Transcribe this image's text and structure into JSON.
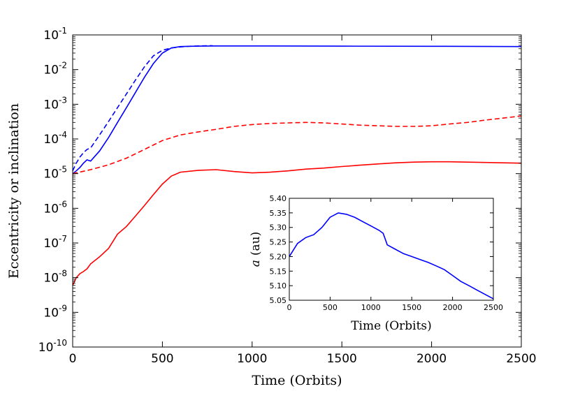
{
  "chart_data": [
    {
      "type": "line",
      "xlabel": "Time (Orbits)",
      "ylabel": "Eccentricity or inclination",
      "xlim": [
        0,
        2500
      ],
      "ylim_exponents": [
        -10,
        -1
      ],
      "yscale": "log",
      "x_ticks": [
        "0",
        "500",
        "1000",
        "1500",
        "2000",
        "2500"
      ],
      "y_ticks": [
        {
          "base": "10",
          "exp": "-10"
        },
        {
          "base": "10",
          "exp": "-9"
        },
        {
          "base": "10",
          "exp": "-8"
        },
        {
          "base": "10",
          "exp": "-7"
        },
        {
          "base": "10",
          "exp": "-6"
        },
        {
          "base": "10",
          "exp": "-5"
        },
        {
          "base": "10",
          "exp": "-4"
        },
        {
          "base": "10",
          "exp": "-3"
        },
        {
          "base": "10",
          "exp": "-2"
        },
        {
          "base": "10",
          "exp": "-1"
        }
      ],
      "series": [
        {
          "color": "#0000ff",
          "style": "solid",
          "x": [
            0,
            20,
            40,
            60,
            80,
            100,
            150,
            200,
            250,
            300,
            350,
            400,
            450,
            500,
            550,
            600,
            650,
            700,
            800,
            1000,
            1500,
            2000,
            2500
          ],
          "y": [
            1e-05,
            1.2e-05,
            1.5e-05,
            2e-05,
            2.5e-05,
            2.3e-05,
            4.5e-05,
            0.00011,
            0.0003,
            0.0008,
            0.0022,
            0.006,
            0.015,
            0.03,
            0.042,
            0.046,
            0.047,
            0.0475,
            0.048,
            0.048,
            0.0475,
            0.047,
            0.046
          ]
        },
        {
          "color": "#0000ff",
          "style": "dashed",
          "x": [
            0,
            20,
            40,
            60,
            80,
            100,
            150,
            200,
            250,
            300,
            350,
            400,
            450,
            500,
            550,
            600,
            650,
            700,
            780
          ],
          "y": [
            1.2e-05,
            2e-05,
            3e-05,
            4e-05,
            5e-05,
            5.5e-05,
            0.00013,
            0.00032,
            0.0008,
            0.002,
            0.005,
            0.012,
            0.025,
            0.036,
            0.042,
            0.045,
            0.047,
            0.048,
            0.049
          ]
        },
        {
          "color": "#ff0000",
          "style": "dashed",
          "x": [
            0,
            100,
            200,
            300,
            400,
            500,
            600,
            700,
            800,
            900,
            1000,
            1100,
            1200,
            1300,
            1400,
            1500,
            1600,
            1700,
            1800,
            1900,
            2000,
            2100,
            2200,
            2300,
            2400,
            2500
          ],
          "y": [
            1e-05,
            1.3e-05,
            1.8e-05,
            2.8e-05,
            5e-05,
            9e-05,
            0.00013,
            0.00016,
            0.00019,
            0.00023,
            0.00026,
            0.00028,
            0.00029,
            0.0003,
            0.00029,
            0.00027,
            0.00025,
            0.00024,
            0.00023,
            0.00023,
            0.00024,
            0.00027,
            0.0003,
            0.00035,
            0.0004,
            0.00046
          ]
        },
        {
          "color": "#ff0000",
          "style": "solid",
          "x": [
            0,
            20,
            40,
            60,
            80,
            100,
            150,
            200,
            250,
            300,
            350,
            400,
            450,
            500,
            550,
            600,
            700,
            800,
            900,
            1000,
            1100,
            1200,
            1300,
            1400,
            1500,
            1600,
            1700,
            1800,
            1900,
            2000,
            2100,
            2200,
            2300,
            2400,
            2500
          ],
          "y": [
            6e-09,
            1e-08,
            1.3e-08,
            1.5e-08,
            1.8e-08,
            2.5e-08,
            4e-08,
            7e-08,
            1.8e-07,
            3e-07,
            6e-07,
            1.2e-06,
            2.5e-06,
            5e-06,
            8.5e-06,
            1.1e-05,
            1.25e-05,
            1.3e-05,
            1.15e-05,
            1.05e-05,
            1.1e-05,
            1.2e-05,
            1.35e-05,
            1.45e-05,
            1.6e-05,
            1.75e-05,
            1.9e-05,
            2.05e-05,
            2.15e-05,
            2.2e-05,
            2.2e-05,
            2.15e-05,
            2.1e-05,
            2.05e-05,
            2e-05
          ]
        }
      ]
    },
    {
      "type": "line",
      "xlabel": "Time (Orbits)",
      "ylabel_var": "a",
      "ylabel_unit": "(au)",
      "xlim": [
        0,
        2500
      ],
      "ylim": [
        5.05,
        5.4
      ],
      "x_ticks": [
        "0",
        "500",
        "1000",
        "1500",
        "2000",
        "2500"
      ],
      "y_ticks": [
        "5.05",
        "5.10",
        "5.15",
        "5.20",
        "5.25",
        "5.30",
        "5.35",
        "5.40"
      ],
      "series": [
        {
          "color": "#0000ff",
          "x": [
            0,
            100,
            200,
            300,
            400,
            500,
            600,
            700,
            800,
            900,
            1000,
            1100,
            1150,
            1200,
            1300,
            1400,
            1500,
            1600,
            1700,
            1800,
            1900,
            2000,
            2100,
            2200,
            2300,
            2400,
            2500
          ],
          "y": [
            5.2,
            5.245,
            5.265,
            5.275,
            5.3,
            5.335,
            5.35,
            5.345,
            5.335,
            5.32,
            5.305,
            5.29,
            5.28,
            5.24,
            5.225,
            5.21,
            5.2,
            5.19,
            5.18,
            5.168,
            5.155,
            5.135,
            5.115,
            5.1,
            5.085,
            5.07,
            5.055
          ]
        }
      ]
    }
  ]
}
